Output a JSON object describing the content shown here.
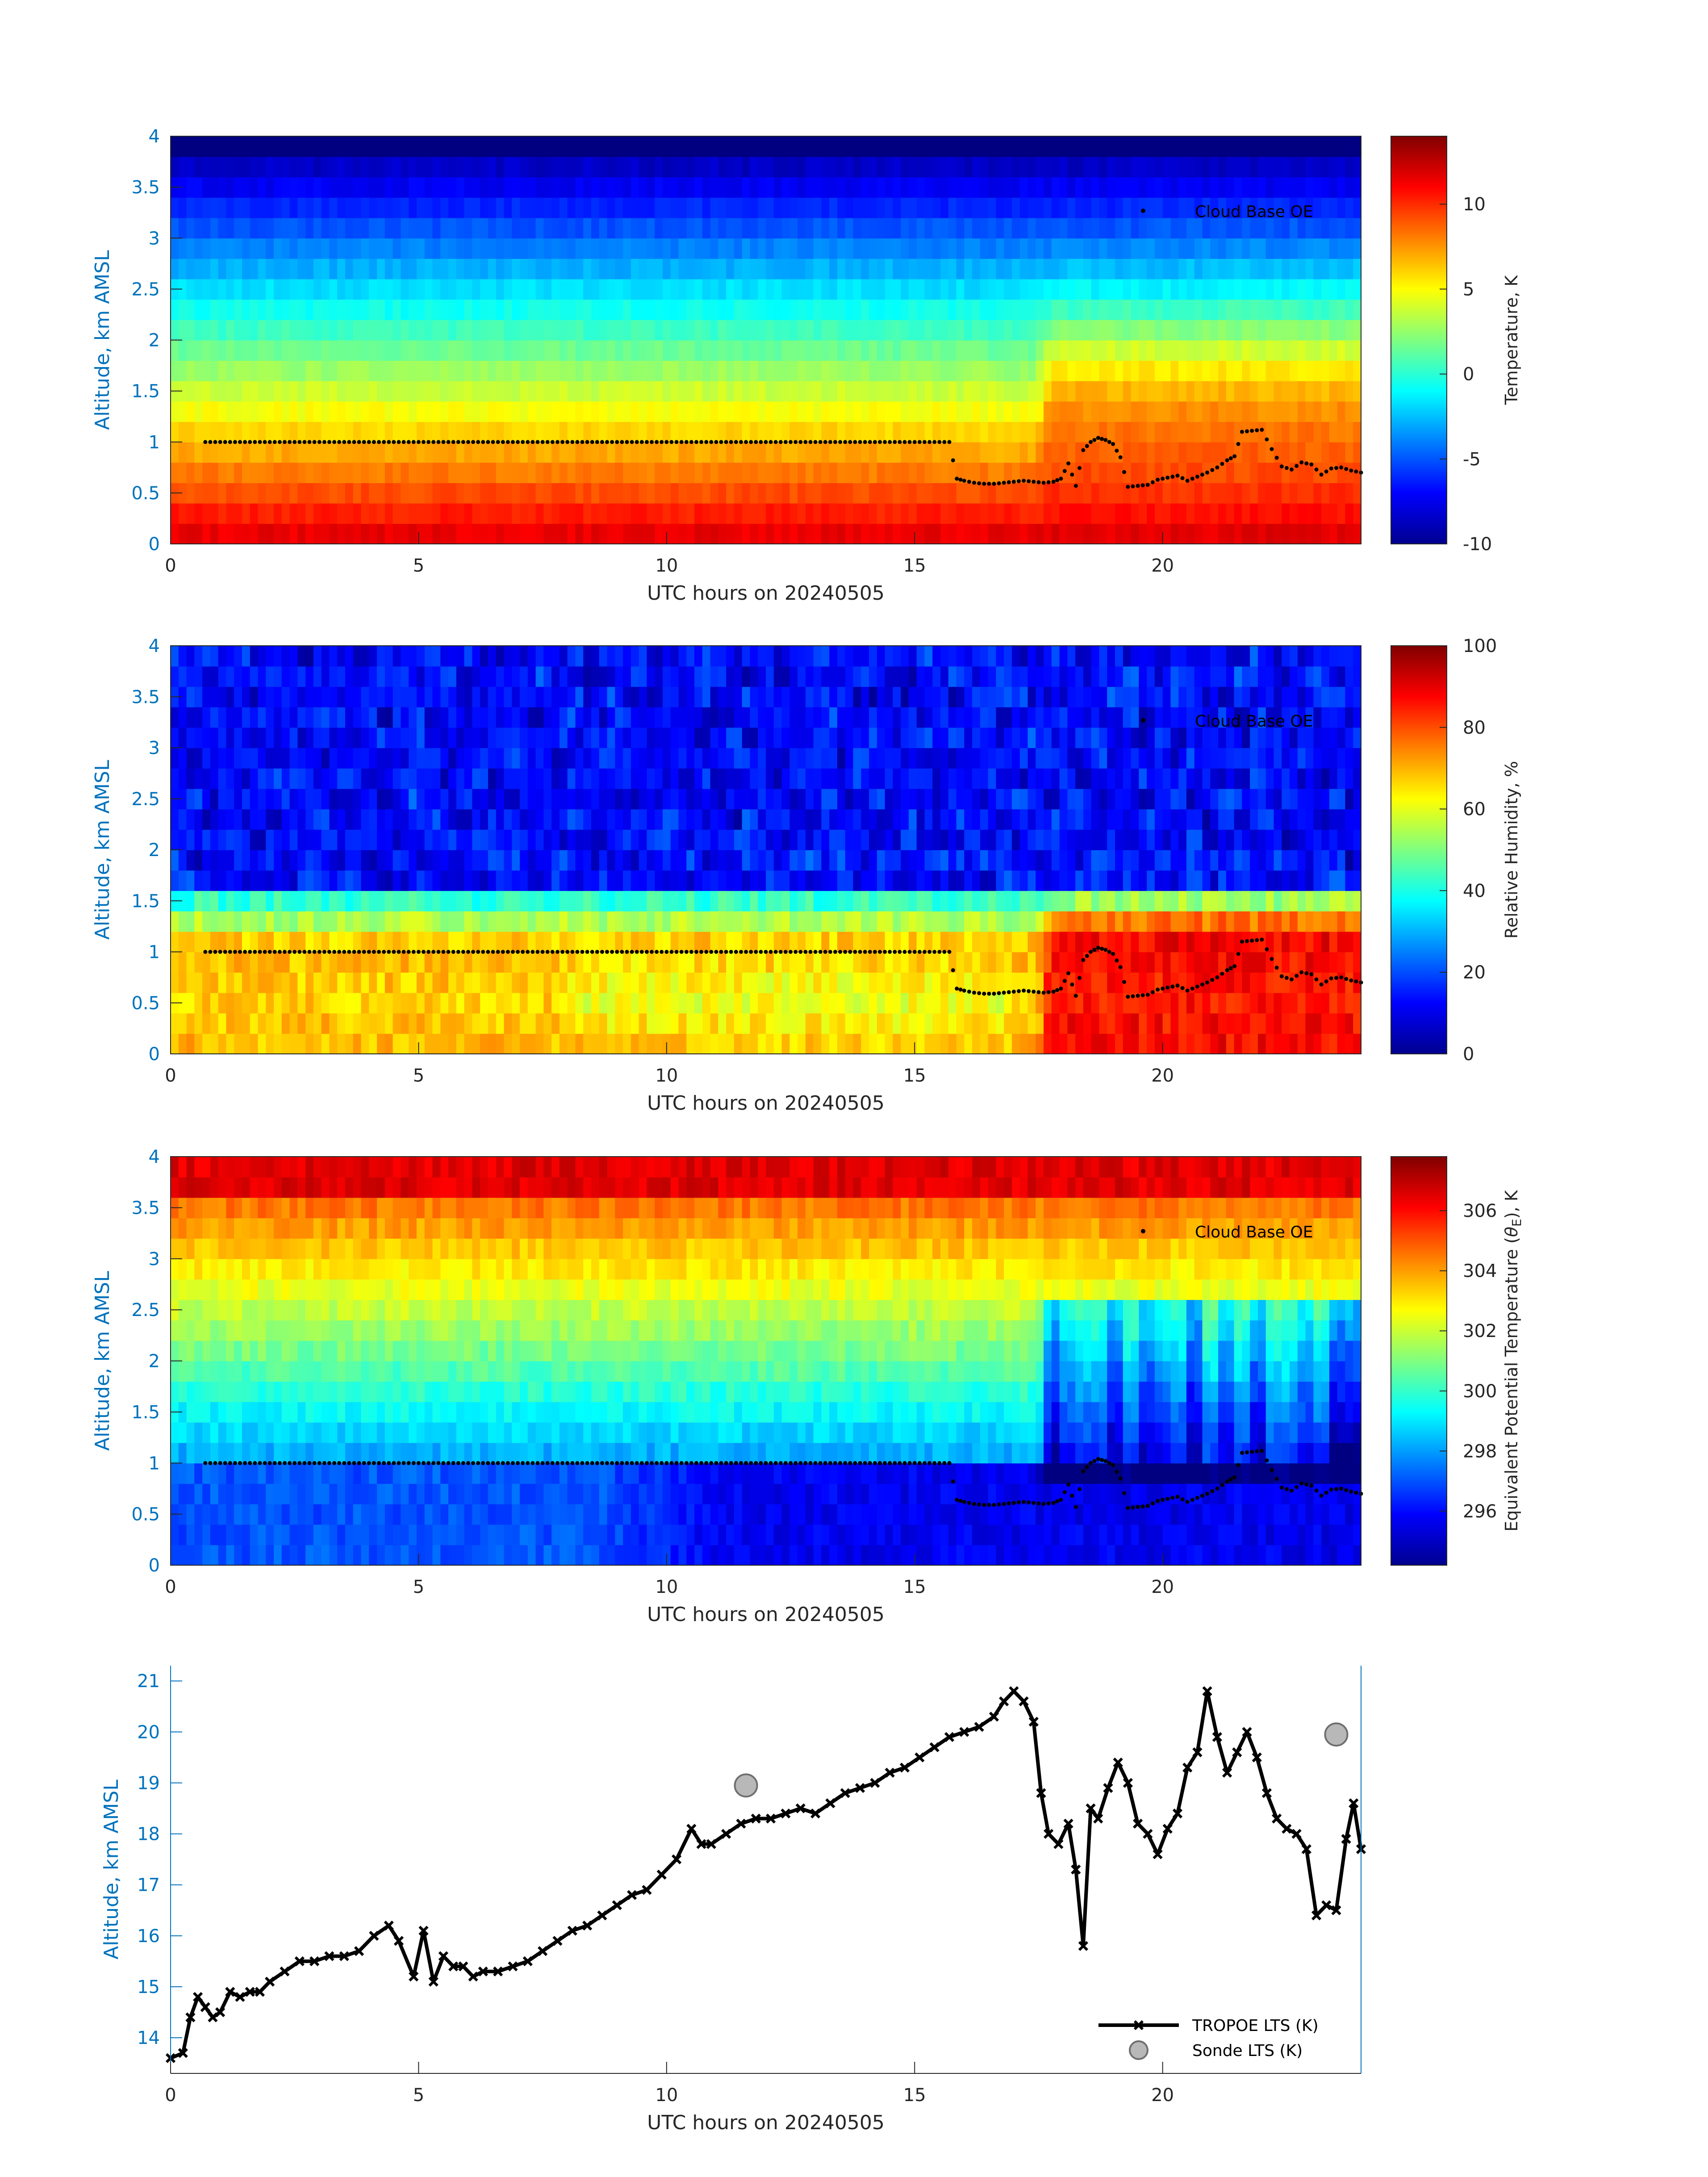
{
  "chart_data": [
    {
      "type": "heatmap",
      "xlabel": "UTC hours on 20240505",
      "ylabel": "Altitude, km AMSL",
      "xlim": [
        0,
        24
      ],
      "ylim": [
        0,
        4
      ],
      "x_ticks": [
        "0",
        "5",
        "10",
        "15",
        "20"
      ],
      "y_ticks": [
        "0",
        "0.5",
        "1",
        "1.5",
        "2",
        "2.5",
        "3",
        "3.5",
        "4"
      ],
      "colorbar": {
        "label": "Temperature, K",
        "range": [
          -10,
          14
        ],
        "ticks": [
          "-10",
          "-5",
          "0",
          "5",
          "10"
        ],
        "colormap": "jet"
      },
      "legend": {
        "entries": [
          "Cloud Base OE"
        ],
        "placement": "top-right"
      },
      "field": {
        "surface_value": 12.0,
        "lapse_per_km": -5.5,
        "late_day_warming_at_1_5km": 3.0
      }
    },
    {
      "type": "heatmap",
      "xlabel": "UTC hours on 20240505",
      "ylabel": "Altitude, km AMSL",
      "xlim": [
        0,
        24
      ],
      "ylim": [
        0,
        4
      ],
      "x_ticks": [
        "0",
        "5",
        "10",
        "15",
        "20"
      ],
      "y_ticks": [
        "0",
        "0.5",
        "1",
        "1.5",
        "2",
        "2.5",
        "3",
        "3.5",
        "4"
      ],
      "colorbar": {
        "label": "Relative Humidity, %",
        "range": [
          0,
          100
        ],
        "ticks": [
          "0",
          "20",
          "40",
          "60",
          "80",
          "100"
        ],
        "colormap": "jet"
      },
      "legend": {
        "entries": [
          "Cloud Base OE"
        ],
        "placement": "top-right"
      },
      "field": {
        "boundary_layer_value_early": 70,
        "boundary_layer_value_late": 88,
        "free_troposphere_value": 12
      }
    },
    {
      "type": "heatmap",
      "xlabel": "UTC hours on 20240505",
      "ylabel": "Altitude, km AMSL",
      "xlim": [
        0,
        24
      ],
      "ylim": [
        0,
        4
      ],
      "x_ticks": [
        "0",
        "5",
        "10",
        "15",
        "20"
      ],
      "y_ticks": [
        "0",
        "0.5",
        "1",
        "1.5",
        "2",
        "2.5",
        "3",
        "3.5",
        "4"
      ],
      "colorbar": {
        "label_prefix": "Equivalent Potential Temperature (",
        "label_symbol": "θ",
        "label_subscript": "E",
        "label_suffix": "), K",
        "range": [
          294.2,
          307.8
        ],
        "ticks": [
          "296",
          "298",
          "300",
          "302",
          "304",
          "306"
        ],
        "colormap": "jet"
      },
      "legend": {
        "entries": [
          "Cloud Base OE"
        ],
        "placement": "top-right"
      },
      "field": {
        "low_level_value": 297.0,
        "top_value": 306.5
      }
    },
    {
      "type": "line",
      "xlabel": "UTC hours on 20240505",
      "ylabel": "Altitude, km AMSL",
      "xlim": [
        0,
        24
      ],
      "ylim": [
        13.3,
        21.3
      ],
      "x_ticks": [
        "0",
        "5",
        "10",
        "15",
        "20"
      ],
      "y_ticks": [
        "14",
        "15",
        "16",
        "17",
        "18",
        "19",
        "20",
        "21"
      ],
      "legend": {
        "placement": "bottom-right"
      },
      "series": [
        {
          "name": "TROPOE LTS (K)",
          "x": [
            0.0,
            0.25,
            0.4,
            0.55,
            0.7,
            0.85,
            1.0,
            1.2,
            1.4,
            1.6,
            1.8,
            2.0,
            2.3,
            2.6,
            2.9,
            3.2,
            3.5,
            3.8,
            4.1,
            4.4,
            4.6,
            4.9,
            5.1,
            5.3,
            5.5,
            5.7,
            5.9,
            6.1,
            6.3,
            6.6,
            6.9,
            7.2,
            7.5,
            7.8,
            8.1,
            8.4,
            8.7,
            9.0,
            9.3,
            9.6,
            9.9,
            10.2,
            10.5,
            10.7,
            10.9,
            11.2,
            11.5,
            11.8,
            12.1,
            12.4,
            12.7,
            13.0,
            13.3,
            13.6,
            13.9,
            14.2,
            14.5,
            14.8,
            15.1,
            15.4,
            15.7,
            16.0,
            16.3,
            16.6,
            16.8,
            17.0,
            17.2,
            17.4,
            17.55,
            17.7,
            17.9,
            18.1,
            18.25,
            18.4,
            18.55,
            18.7,
            18.9,
            19.1,
            19.3,
            19.5,
            19.7,
            19.9,
            20.1,
            20.3,
            20.5,
            20.7,
            20.9,
            21.1,
            21.3,
            21.5,
            21.7,
            21.9,
            22.1,
            22.3,
            22.5,
            22.7,
            22.9,
            23.1,
            23.3,
            23.5,
            23.7,
            23.85,
            24.0
          ],
          "values": [
            13.6,
            13.7,
            14.4,
            14.8,
            14.6,
            14.4,
            14.5,
            14.9,
            14.8,
            14.9,
            14.9,
            15.1,
            15.3,
            15.5,
            15.5,
            15.6,
            15.6,
            15.7,
            16.0,
            16.2,
            15.9,
            15.2,
            16.1,
            15.1,
            15.6,
            15.4,
            15.4,
            15.2,
            15.3,
            15.3,
            15.4,
            15.5,
            15.7,
            15.9,
            16.1,
            16.2,
            16.4,
            16.6,
            16.8,
            16.9,
            17.2,
            17.5,
            18.1,
            17.8,
            17.8,
            18.0,
            18.2,
            18.3,
            18.3,
            18.4,
            18.5,
            18.4,
            18.6,
            18.8,
            18.9,
            19.0,
            19.2,
            19.3,
            19.5,
            19.7,
            19.9,
            20.0,
            20.1,
            20.3,
            20.6,
            20.8,
            20.6,
            20.2,
            18.8,
            18.0,
            17.8,
            18.2,
            17.3,
            15.8,
            18.5,
            18.3,
            18.9,
            19.4,
            19.0,
            18.2,
            18.0,
            17.6,
            18.1,
            18.4,
            19.3,
            19.6,
            20.8,
            19.9,
            19.2,
            19.6,
            20.0,
            19.5,
            18.8,
            18.3,
            18.1,
            18.0,
            17.7,
            16.4,
            16.6,
            16.5,
            17.9,
            18.6,
            17.7
          ]
        },
        {
          "name": "Sonde LTS (K)",
          "x": [
            11.6,
            23.5
          ],
          "values": [
            18.95,
            19.95
          ]
        }
      ]
    }
  ],
  "cloud_base": {
    "x": [
      0.7,
      15.7,
      15.85,
      16.0,
      16.2,
      16.4,
      16.6,
      16.8,
      17.0,
      17.2,
      17.4,
      17.6,
      17.8,
      17.95,
      18.1,
      18.25,
      18.4,
      18.55,
      18.7,
      18.85,
      19.0,
      19.15,
      19.3,
      19.5,
      19.7,
      19.9,
      20.1,
      20.3,
      20.5,
      20.7,
      20.9,
      21.1,
      21.3,
      21.45,
      21.6,
      21.8,
      22.0,
      22.2,
      22.4,
      22.6,
      22.8,
      23.0,
      23.2,
      23.4,
      23.6,
      23.8,
      24.0
    ],
    "values": [
      1.0,
      1.0,
      0.64,
      0.62,
      0.6,
      0.59,
      0.59,
      0.6,
      0.61,
      0.62,
      0.61,
      0.6,
      0.61,
      0.64,
      0.79,
      0.57,
      0.92,
      1.0,
      1.04,
      1.02,
      0.98,
      0.85,
      0.56,
      0.57,
      0.58,
      0.63,
      0.65,
      0.67,
      0.62,
      0.66,
      0.7,
      0.75,
      0.82,
      0.86,
      1.1,
      1.11,
      1.12,
      0.93,
      0.76,
      0.73,
      0.8,
      0.78,
      0.68,
      0.74,
      0.75,
      0.72,
      0.7
    ]
  }
}
